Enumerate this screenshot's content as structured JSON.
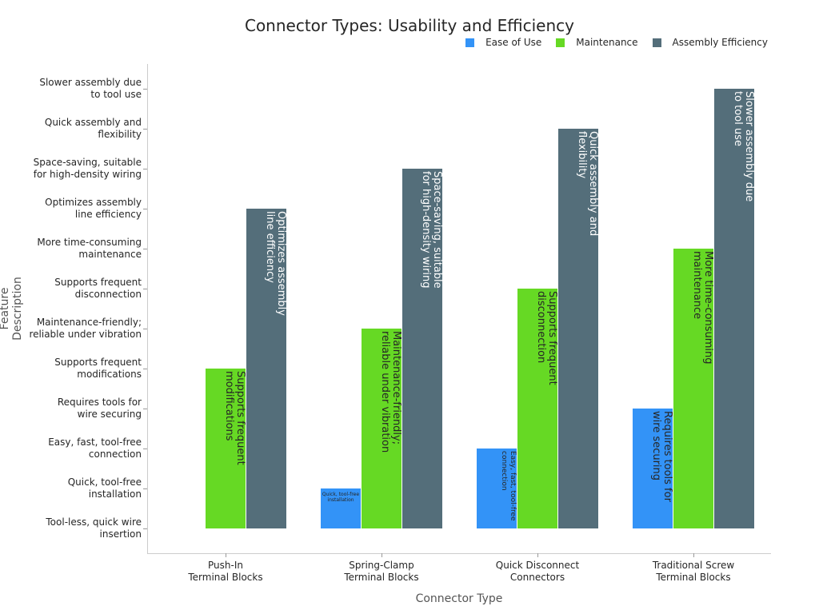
{
  "chart_data": {
    "type": "bar",
    "title": "Connector Types: Usability and Efficiency",
    "xlabel": "Connector Type",
    "ylabel": "Feature Description",
    "categories": [
      "Push-In\nTerminal Blocks",
      "Spring-Clamp\nTerminal Blocks",
      "Quick Disconnect\nConnectors",
      "Traditional Screw\nTerminal Blocks"
    ],
    "y_categories": [
      "Tool-less, quick wire\ninsertion",
      "Quick, tool-free\ninstallation",
      "Easy, fast, tool-free\nconnection",
      "Requires tools for\nwire securing",
      "Supports frequent\nmodifications",
      "Maintenance-friendly;\nreliable under vibration",
      "Supports frequent\ndisconnection",
      "More time-consuming\nmaintenance",
      "Optimizes assembly\nline efficiency",
      "Space-saving, suitable\nfor high-density wiring",
      "Quick assembly and\nflexibility",
      "Slower assembly due\nto tool use"
    ],
    "series": [
      {
        "name": "Ease of Use",
        "color": "#3393F7",
        "values": [
          0,
          1,
          2,
          3
        ],
        "text_color": "#262626"
      },
      {
        "name": "Maintenance",
        "color": "#66D924",
        "values": [
          4,
          5,
          6,
          7
        ],
        "text_color": "#262626"
      },
      {
        "name": "Assembly Efficiency",
        "color": "#546E7A",
        "values": [
          8,
          9,
          10,
          11
        ],
        "text_color": "#ffffff"
      }
    ],
    "legend_position": "top-right",
    "grid": false
  }
}
